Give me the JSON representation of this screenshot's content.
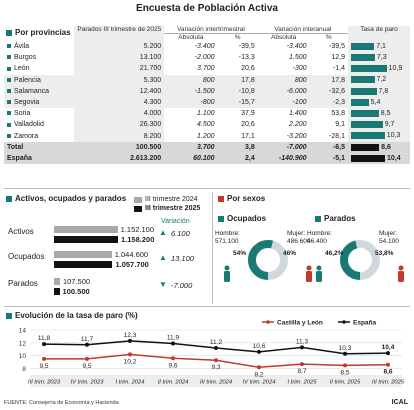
{
  "title": "Encuesta de Población Activa",
  "provincias": {
    "section_title": "Por provincias",
    "headers": {
      "parados": "Parados III trimestre de 2025",
      "var_inter": "Variación intertrimestral",
      "var_anual": "Variación interanual",
      "absoluta": "Absoluta",
      "pct": "%",
      "tasa": "Tasa de paro"
    },
    "rows": [
      {
        "name": "Ávila",
        "parados": "5.200",
        "inter_abs": "-3.400",
        "inter_pct": "-39,5",
        "anual_abs": "-3.400",
        "anual_pct": "-39,5",
        "tasa": 7.1,
        "tasa_label": "7,1",
        "group": "a"
      },
      {
        "name": "Burgos",
        "parados": "13.100",
        "inter_abs": "-2.000",
        "inter_pct": "-13,3",
        "anual_abs": "1.500",
        "anual_pct": "12,9",
        "tasa": 7.3,
        "tasa_label": "7,3",
        "group": "a"
      },
      {
        "name": "León",
        "parados": "21.700",
        "inter_abs": "3.700",
        "inter_pct": "20,6",
        "anual_abs": "-300",
        "anual_pct": "-1,4",
        "tasa": 10.9,
        "tasa_label": "10,9",
        "group": "a"
      },
      {
        "name": "Palencia",
        "parados": "5.300",
        "inter_abs": "800",
        "inter_pct": "17,8",
        "anual_abs": "800",
        "anual_pct": "17,8",
        "tasa": 7.2,
        "tasa_label": "7,2",
        "group": "b"
      },
      {
        "name": "Salamanca",
        "parados": "12.400",
        "inter_abs": "-1.500",
        "inter_pct": "-10,8",
        "anual_abs": "-6.000",
        "anual_pct": "-32,6",
        "tasa": 7.8,
        "tasa_label": "7,8",
        "group": "b"
      },
      {
        "name": "Segovia",
        "parados": "4.300",
        "inter_abs": "-800",
        "inter_pct": "-15,7",
        "anual_abs": "-100",
        "anual_pct": "-2,3",
        "tasa": 5.4,
        "tasa_label": "5,4",
        "group": "b"
      },
      {
        "name": "Soria",
        "parados": "4.000",
        "inter_abs": "1.100",
        "inter_pct": "37,9",
        "anual_abs": "1.400",
        "anual_pct": "53,8",
        "tasa": 8.5,
        "tasa_label": "8,5",
        "group": "a"
      },
      {
        "name": "Valladolid",
        "parados": "26.300",
        "inter_abs": "4.500",
        "inter_pct": "20,6",
        "anual_abs": "2.200",
        "anual_pct": "9,1",
        "tasa": 9.7,
        "tasa_label": "9,7",
        "group": "a"
      },
      {
        "name": "Zamora",
        "parados": "8.200",
        "inter_abs": "1.200",
        "inter_pct": "17,1",
        "anual_abs": "-3.200",
        "anual_pct": "-28,1",
        "tasa": 10.3,
        "tasa_label": "10,3",
        "group": "a"
      }
    ],
    "totals": [
      {
        "name": "Total",
        "parados": "100.500",
        "inter_abs": "3.700",
        "inter_pct": "3,8",
        "anual_abs": "-7.000",
        "anual_pct": "-6,5",
        "tasa": 8.6,
        "tasa_label": "8,6"
      },
      {
        "name": "España",
        "parados": "2.613.200",
        "inter_abs": "60.100",
        "inter_pct": "2,4",
        "anual_abs": "-140.900",
        "anual_pct": "-5,1",
        "tasa": 10.4,
        "tasa_label": "10,4"
      }
    ]
  },
  "activos": {
    "section_title": "Activos, ocupados y parados",
    "legend_2024": "III trimestre 2024",
    "legend_2025": "III trimestre 2025",
    "variacion_label": "Variación",
    "items": [
      {
        "label": "Activos",
        "v2024": 1152100,
        "v2024_label": "1.152.100",
        "v2025": 1158200,
        "v2025_label": "1.158.200",
        "var": "6.100",
        "dir": "up"
      },
      {
        "label": "Ocupados",
        "v2024": 1044600,
        "v2024_label": "1.044.600",
        "v2025": 1057700,
        "v2025_label": "1.057.700",
        "var": "13.100",
        "dir": "up"
      },
      {
        "label": "Parados",
        "v2024": 107500,
        "v2024_label": "107.500",
        "v2025": 100500,
        "v2025_label": "100.500",
        "var": "-7.000",
        "dir": "down"
      }
    ]
  },
  "sexos": {
    "section_title": "Por sexos",
    "ocupados": {
      "title": "Ocupados",
      "hombre_label": "Hombre:",
      "hombre_value": "571.100",
      "hombre_pct": "54%",
      "hombre_frac": 0.54,
      "mujer_label": "Mujer:",
      "mujer_value": "486.600",
      "mujer_pct": "46%"
    },
    "parados": {
      "title": "Parados",
      "hombre_label": "Hombre:",
      "hombre_value": "46.400",
      "hombre_pct": "46,2%",
      "hombre_frac": 0.462,
      "mujer_label": "Mujer:",
      "mujer_value": "54.100",
      "mujer_pct": "53,8%"
    }
  },
  "chart_data": {
    "type": "line",
    "title": "Evolución de la tasa de paro (%)",
    "categories": [
      "III trim. 2023",
      "IV trim. 2023",
      "I trim. 2024",
      "II trim. 2024",
      "III trim. 2024",
      "IV trim. 2024",
      "I trim. 2025",
      "II trim. 2025",
      "III trim. 2025"
    ],
    "series": [
      {
        "name": "Castilla y León",
        "values": [
          9.5,
          9.5,
          10.2,
          9.6,
          9.3,
          8.2,
          8.7,
          8.5,
          8.6
        ],
        "labels": [
          "9,5",
          "9,5",
          "10,2",
          "9,6",
          "9,3",
          "8,2",
          "8,7",
          "8,5",
          "8,6"
        ],
        "color": "#c0392b"
      },
      {
        "name": "España",
        "values": [
          11.8,
          11.7,
          12.3,
          11.9,
          11.2,
          10.6,
          11.3,
          10.3,
          10.4
        ],
        "labels": [
          "11,8",
          "11,7",
          "12,3",
          "11,9",
          "11,2",
          "10,6",
          "11,3",
          "10,3",
          "10,4"
        ],
        "color": "#111111"
      }
    ],
    "yticks": [
      "14",
      "12",
      "10",
      "8"
    ],
    "ylim": [
      7,
      14
    ],
    "legend": "top-right",
    "grid": true
  },
  "colors": {
    "teal": "#1a7a73",
    "red": "#c0392b",
    "black": "#111111",
    "grey": "#a8a8a8"
  },
  "footer": {
    "source": "FUENTE: Consejería de Economía y Hacienda",
    "brand": "ICAL"
  }
}
